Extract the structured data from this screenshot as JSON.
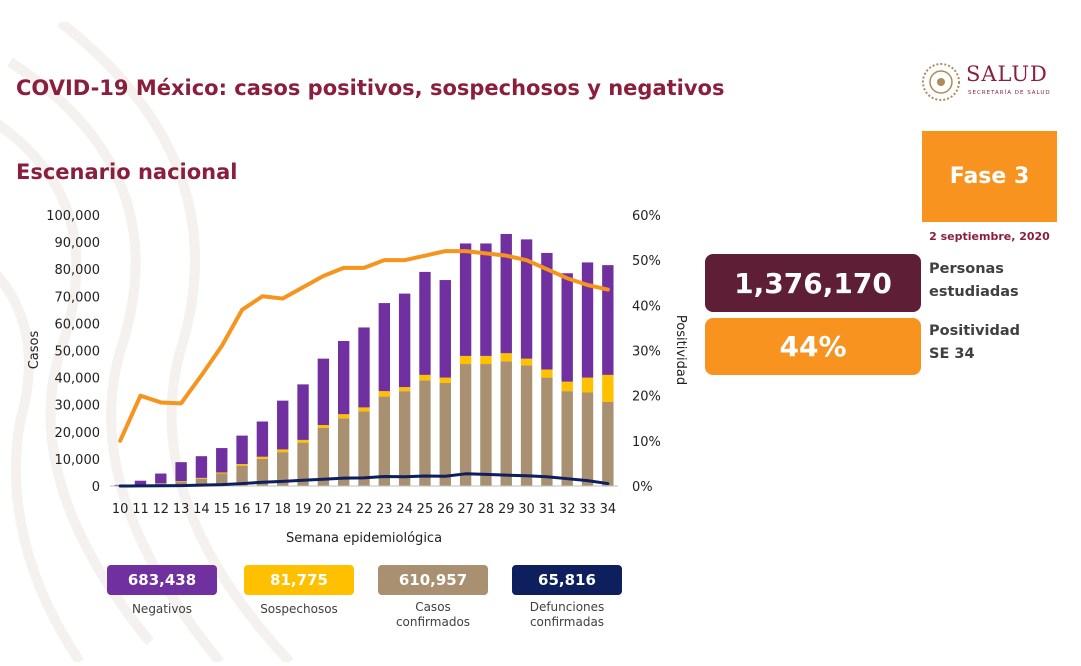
{
  "header": {
    "title": "COVID-19 México: casos positivos, sospechosos y negativos",
    "subtitle": "Escenario nacional"
  },
  "logo": {
    "name": "SALUD",
    "sub": "SECRETARÍA DE SALUD"
  },
  "fase": {
    "label": "Fase 3",
    "date": "2 septiembre, 2020"
  },
  "stats": {
    "personas_value": "1,376,170",
    "personas_label_1": "Personas",
    "personas_label_2": "estudiadas",
    "positividad_value": "44%",
    "positividad_label_1": "Positividad",
    "positividad_label_2": "SE 34"
  },
  "totals": [
    {
      "value": "683,438",
      "label_1": "Negativos",
      "label_2": "",
      "color": "#7030a0",
      "text_color": "#ffffff"
    },
    {
      "value": "81,775",
      "label_1": "Sospechosos",
      "label_2": "",
      "color": "#ffc000",
      "text_color": "#ffffff"
    },
    {
      "value": "610,957",
      "label_1": "Casos",
      "label_2": "confirmados",
      "color": "#a89070",
      "text_color": "#ffffff"
    },
    {
      "value": "65,816",
      "label_1": "Defunciones",
      "label_2": "confirmadas",
      "color": "#0d1f5c",
      "text_color": "#ffffff"
    }
  ],
  "chart_data": {
    "type": "bar",
    "stacked": true,
    "xlabel": "Semana epidemiológica",
    "ylabel": "Casos",
    "y2label": "Positividad",
    "ylim": [
      0,
      100000
    ],
    "y2lim": [
      0,
      60
    ],
    "yticks": [
      "0",
      "10,000",
      "20,000",
      "30,000",
      "40,000",
      "50,000",
      "60,000",
      "70,000",
      "80,000",
      "90,000",
      "100,000"
    ],
    "y2ticks": [
      "0%",
      "10%",
      "20%",
      "30%",
      "40%",
      "50%",
      "60%"
    ],
    "categories": [
      "10",
      "11",
      "12",
      "13",
      "14",
      "15",
      "16",
      "17",
      "18",
      "19",
      "20",
      "21",
      "22",
      "23",
      "24",
      "25",
      "26",
      "27",
      "28",
      "29",
      "30",
      "31",
      "32",
      "33",
      "34"
    ],
    "series": [
      {
        "name": "Casos confirmados",
        "kind": "bar",
        "color": "#a89070",
        "values": [
          100,
          400,
          900,
          1600,
          2700,
          4600,
          7500,
          10000,
          12500,
          16000,
          21500,
          25000,
          27500,
          33000,
          35000,
          39000,
          38000,
          45000,
          45000,
          46000,
          44500,
          40000,
          35000,
          34500,
          31000
        ]
      },
      {
        "name": "Sospechosos",
        "kind": "bar",
        "color": "#ffc000",
        "values": [
          0,
          50,
          100,
          200,
          300,
          400,
          600,
          800,
          1000,
          1000,
          1000,
          1500,
          1500,
          2000,
          1500,
          2000,
          2000,
          3000,
          3000,
          3000,
          2500,
          3000,
          3500,
          5500,
          10000
        ]
      },
      {
        "name": "Negativos",
        "kind": "bar",
        "color": "#7030a0",
        "values": [
          300,
          1500,
          3600,
          7000,
          8000,
          9000,
          10500,
          13000,
          18000,
          20500,
          24500,
          27000,
          29500,
          32500,
          34500,
          38000,
          36000,
          41500,
          41500,
          44000,
          44000,
          43000,
          40000,
          42500,
          40500
        ]
      },
      {
        "name": "Positividad",
        "kind": "line",
        "axis": "y2",
        "color": "#f7941d",
        "values": [
          10,
          20,
          18.5,
          18.3,
          24.5,
          31,
          39,
          42,
          41.5,
          44,
          46.5,
          48.3,
          48.3,
          50,
          50,
          51,
          52,
          52,
          51.5,
          51,
          50,
          48,
          46,
          44.5,
          43.5
        ]
      },
      {
        "name": "Defunciones",
        "kind": "line",
        "axis": "y",
        "color": "#0d1f5c",
        "values": [
          0,
          50,
          100,
          150,
          300,
          500,
          900,
          1400,
          1700,
          2100,
          2500,
          2900,
          3000,
          3500,
          3400,
          3700,
          3600,
          4500,
          4300,
          4000,
          3800,
          3400,
          2700,
          2000,
          900
        ]
      }
    ]
  }
}
